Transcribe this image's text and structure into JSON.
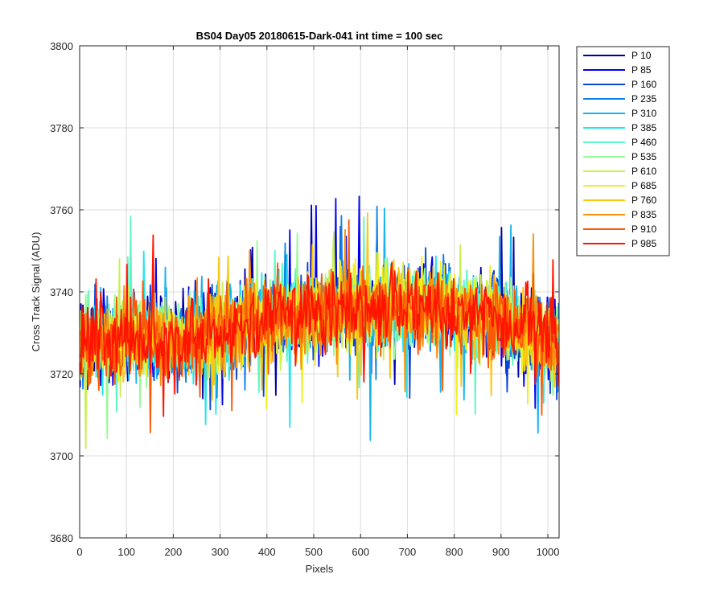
{
  "chart_data": {
    "type": "line",
    "title": "BS04 Day05 20180615-Dark-041 int time = 100 sec",
    "xlabel": "Pixels",
    "ylabel": "Cross Track Signal (ADU)",
    "xlim": [
      0,
      1024
    ],
    "ylim": [
      3680,
      3800
    ],
    "xticks": [
      0,
      100,
      200,
      300,
      400,
      500,
      600,
      700,
      800,
      900,
      1000
    ],
    "yticks": [
      3680,
      3700,
      3720,
      3740,
      3760,
      3780,
      3800
    ],
    "grid": true,
    "legend_position": "outside-top-right",
    "trend": {
      "x": [
        0,
        100,
        200,
        300,
        400,
        500,
        600,
        700,
        800,
        900,
        1024
      ],
      "y": [
        3728,
        3729,
        3728,
        3731,
        3733,
        3735,
        3736,
        3736,
        3736,
        3733,
        3727
      ]
    },
    "noise_amplitude": 12,
    "series": [
      {
        "name": "P 10",
        "color": "#0000a8"
      },
      {
        "name": "P 85",
        "color": "#0000ee"
      },
      {
        "name": "P 160",
        "color": "#0a46d6"
      },
      {
        "name": "P 235",
        "color": "#0f82e6"
      },
      {
        "name": "P 310",
        "color": "#16b4f0"
      },
      {
        "name": "P 385",
        "color": "#1ee6f0"
      },
      {
        "name": "P 460",
        "color": "#5ff5c8"
      },
      {
        "name": "P 535",
        "color": "#96fa96"
      },
      {
        "name": "P 610",
        "color": "#c8f050"
      },
      {
        "name": "P 685",
        "color": "#f0f01e"
      },
      {
        "name": "P 760",
        "color": "#fac80f"
      },
      {
        "name": "P 835",
        "color": "#fa910a"
      },
      {
        "name": "P 910",
        "color": "#fa5a05"
      },
      {
        "name": "P 985",
        "color": "#ff1400"
      }
    ]
  }
}
